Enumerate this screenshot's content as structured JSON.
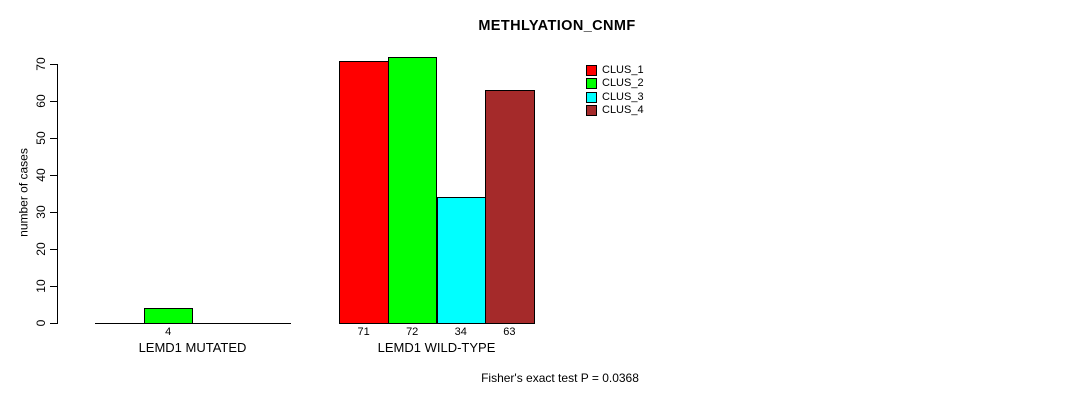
{
  "chart_data": {
    "type": "bar",
    "title": "METHLYATION_CNMF",
    "ylabel": "number of cases",
    "xlabel": "",
    "ylim": [
      0,
      70
    ],
    "yticks": [
      0,
      10,
      20,
      30,
      40,
      50,
      60,
      70
    ],
    "grid": false,
    "legend_position": "top-right",
    "categories": [
      "LEMD1 MUTATED",
      "LEMD1 WILD-TYPE"
    ],
    "series": [
      {
        "name": "CLUS_1",
        "color": "#ff0000",
        "values": [
          0,
          71
        ]
      },
      {
        "name": "CLUS_2",
        "color": "#00ff00",
        "values": [
          4,
          72
        ]
      },
      {
        "name": "CLUS_3",
        "color": "#00ffff",
        "values": [
          0,
          34
        ]
      },
      {
        "name": "CLUS_4",
        "color": "#a52a2a",
        "values": [
          0,
          63
        ]
      }
    ],
    "bar_value_labels": [
      [
        "",
        "4",
        "",
        ""
      ],
      [
        "71",
        "72",
        "34",
        "63"
      ]
    ],
    "footnote": "Fisher's exact test P = 0.0368"
  }
}
